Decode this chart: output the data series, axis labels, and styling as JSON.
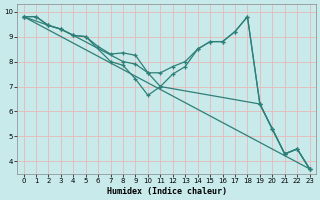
{
  "xlabel": "Humidex (Indice chaleur)",
  "bg_color": "#c8eaea",
  "line_color": "#2e7f78",
  "grid_color": "#e8b8b8",
  "xlim": [
    -0.5,
    23.5
  ],
  "ylim": [
    3.5,
    10.3
  ],
  "xticks": [
    0,
    1,
    2,
    3,
    4,
    5,
    6,
    7,
    8,
    9,
    10,
    11,
    12,
    13,
    14,
    15,
    16,
    17,
    18,
    19,
    20,
    21,
    22,
    23
  ],
  "yticks": [
    4,
    5,
    6,
    7,
    8,
    9,
    10
  ],
  "line1": {
    "x": [
      0,
      1,
      2,
      3,
      4,
      5,
      6,
      7,
      8,
      9,
      10,
      11,
      12,
      13,
      14,
      15,
      16,
      17,
      18,
      19,
      20,
      21,
      22,
      23
    ],
    "y": [
      9.8,
      9.8,
      9.45,
      9.3,
      9.05,
      9.0,
      8.6,
      8.3,
      8.35,
      8.25,
      7.55,
      7.55,
      7.8,
      8.0,
      8.5,
      8.8,
      8.8,
      9.2,
      9.8,
      6.3,
      5.3,
      4.3,
      4.5,
      3.7
    ]
  },
  "line2": {
    "x": [
      0,
      2,
      3,
      4,
      5,
      7,
      8,
      9,
      10,
      11,
      12,
      13,
      14,
      15,
      16,
      17,
      18,
      19,
      20,
      21,
      22,
      23
    ],
    "y": [
      9.8,
      9.45,
      9.3,
      9.05,
      9.0,
      8.0,
      7.85,
      7.3,
      6.65,
      7.0,
      7.5,
      7.8,
      8.5,
      8.8,
      8.8,
      9.2,
      9.8,
      6.3,
      5.3,
      4.3,
      4.5,
      3.7
    ]
  },
  "line3": {
    "x": [
      0,
      1,
      2,
      3,
      4,
      8,
      9,
      10,
      11,
      19,
      20,
      21,
      22,
      23
    ],
    "y": [
      9.8,
      9.8,
      9.45,
      9.3,
      9.05,
      8.0,
      7.9,
      7.55,
      7.0,
      6.3,
      5.3,
      4.3,
      4.5,
      3.7
    ]
  },
  "line4": {
    "x": [
      0,
      23
    ],
    "y": [
      9.8,
      3.7
    ]
  }
}
